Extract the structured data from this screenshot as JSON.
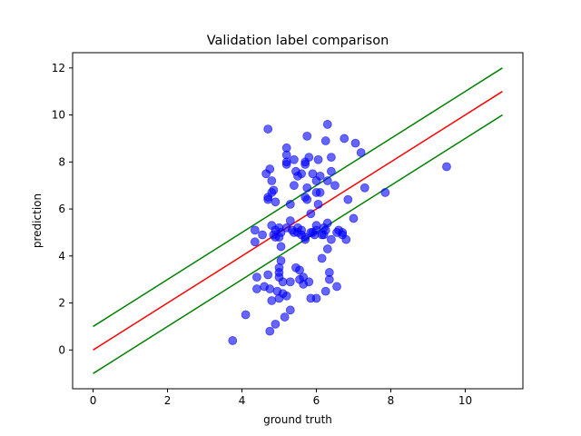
{
  "chart_data": {
    "type": "scatter",
    "title": "Validation label comparison",
    "xlabel": "ground truth",
    "ylabel": "prediction",
    "xlim": [
      -0.55,
      11.55
    ],
    "ylim": [
      -1.65,
      12.65
    ],
    "xticks": [
      0,
      2,
      4,
      6,
      8,
      10
    ],
    "yticks": [
      0,
      2,
      4,
      6,
      8,
      10,
      12
    ],
    "grid": false,
    "legend": "none",
    "point_color": "#0000ff",
    "point_opacity": 0.6,
    "lines": [
      {
        "color": "#008000",
        "x": [
          0,
          11
        ],
        "y": [
          1,
          12
        ]
      },
      {
        "color": "#ff0000",
        "x": [
          0,
          11
        ],
        "y": [
          0,
          11
        ]
      },
      {
        "color": "#008000",
        "x": [
          0,
          11
        ],
        "y": [
          -1,
          10
        ]
      }
    ],
    "points": [
      [
        3.75,
        0.4
      ],
      [
        4.1,
        1.5
      ],
      [
        4.35,
        4.6
      ],
      [
        4.35,
        5.1
      ],
      [
        4.4,
        3.1
      ],
      [
        4.4,
        2.6
      ],
      [
        4.55,
        4.9
      ],
      [
        4.6,
        2.7
      ],
      [
        4.65,
        7.5
      ],
      [
        4.7,
        9.4
      ],
      [
        4.7,
        3.2
      ],
      [
        4.7,
        6.4
      ],
      [
        4.7,
        6.5
      ],
      [
        4.75,
        2.6
      ],
      [
        4.75,
        7.7
      ],
      [
        4.75,
        0.8
      ],
      [
        4.8,
        2.1
      ],
      [
        4.8,
        5.3
      ],
      [
        4.8,
        6.7
      ],
      [
        4.8,
        7.2
      ],
      [
        4.85,
        4.9
      ],
      [
        4.85,
        6.8
      ],
      [
        4.9,
        5.1
      ],
      [
        4.9,
        6.3
      ],
      [
        4.9,
        1.1
      ],
      [
        4.9,
        4.8
      ],
      [
        4.95,
        2.5
      ],
      [
        5.0,
        2.2
      ],
      [
        5.0,
        3.3
      ],
      [
        5.0,
        3.5
      ],
      [
        5.0,
        3.1
      ],
      [
        5.0,
        5.2
      ],
      [
        5.0,
        4.8
      ],
      [
        5.05,
        3.8
      ],
      [
        5.05,
        4.4
      ],
      [
        5.05,
        5.0
      ],
      [
        5.1,
        2.4
      ],
      [
        5.1,
        2.9
      ],
      [
        5.15,
        1.4
      ],
      [
        5.2,
        8.0
      ],
      [
        5.2,
        7.9
      ],
      [
        5.2,
        8.6
      ],
      [
        5.2,
        8.3
      ],
      [
        5.2,
        2.3
      ],
      [
        5.2,
        5.2
      ],
      [
        5.3,
        6.2
      ],
      [
        5.3,
        1.7
      ],
      [
        5.3,
        2.9
      ],
      [
        5.3,
        5.5
      ],
      [
        5.35,
        5.1
      ],
      [
        5.4,
        5.0
      ],
      [
        5.4,
        7.0
      ],
      [
        5.4,
        8.1
      ],
      [
        5.45,
        7.6
      ],
      [
        5.45,
        3.5
      ],
      [
        5.5,
        5.2
      ],
      [
        5.5,
        7.4
      ],
      [
        5.5,
        5.0
      ],
      [
        5.55,
        3.4
      ],
      [
        5.55,
        3.0
      ],
      [
        5.6,
        7.5
      ],
      [
        5.6,
        5.1
      ],
      [
        5.6,
        4.9
      ],
      [
        5.65,
        3.1
      ],
      [
        5.65,
        2.8
      ],
      [
        5.7,
        6.5
      ],
      [
        5.7,
        4.8
      ],
      [
        5.7,
        4.7
      ],
      [
        5.7,
        7.9
      ],
      [
        5.7,
        8.0
      ],
      [
        5.75,
        9.1
      ],
      [
        5.75,
        6.9
      ],
      [
        5.75,
        6.4
      ],
      [
        5.8,
        8.2
      ],
      [
        5.8,
        2.9
      ],
      [
        5.85,
        2.2
      ],
      [
        5.85,
        5.8
      ],
      [
        5.85,
        5.0
      ],
      [
        5.9,
        7.5
      ],
      [
        5.9,
        5.0
      ],
      [
        5.95,
        4.9
      ],
      [
        6.0,
        7.2
      ],
      [
        6.0,
        6.7
      ],
      [
        6.0,
        5.3
      ],
      [
        6.0,
        2.2
      ],
      [
        6.0,
        5.1
      ],
      [
        6.05,
        8.1
      ],
      [
        6.05,
        6.2
      ],
      [
        6.1,
        7.4
      ],
      [
        6.1,
        6.7
      ],
      [
        6.15,
        3.9
      ],
      [
        6.15,
        4.9
      ],
      [
        6.2,
        5.2
      ],
      [
        6.2,
        4.9
      ],
      [
        6.25,
        8.9
      ],
      [
        6.25,
        5.1
      ],
      [
        6.25,
        2.5
      ],
      [
        6.3,
        9.6
      ],
      [
        6.3,
        7.2
      ],
      [
        6.3,
        5.4
      ],
      [
        6.3,
        4.3
      ],
      [
        6.35,
        3.3
      ],
      [
        6.35,
        3.0
      ],
      [
        6.4,
        8.2
      ],
      [
        6.4,
        7.6
      ],
      [
        6.4,
        4.7
      ],
      [
        6.5,
        7.0
      ],
      [
        6.55,
        2.7
      ],
      [
        6.55,
        5.0
      ],
      [
        6.6,
        5.1
      ],
      [
        6.7,
        5.0
      ],
      [
        6.7,
        4.9
      ],
      [
        6.75,
        9.0
      ],
      [
        6.8,
        4.7
      ],
      [
        6.85,
        6.4
      ],
      [
        7.0,
        5.6
      ],
      [
        7.05,
        8.8
      ],
      [
        7.2,
        8.4
      ],
      [
        7.3,
        6.9
      ],
      [
        7.85,
        6.7
      ],
      [
        9.5,
        7.8
      ]
    ]
  }
}
